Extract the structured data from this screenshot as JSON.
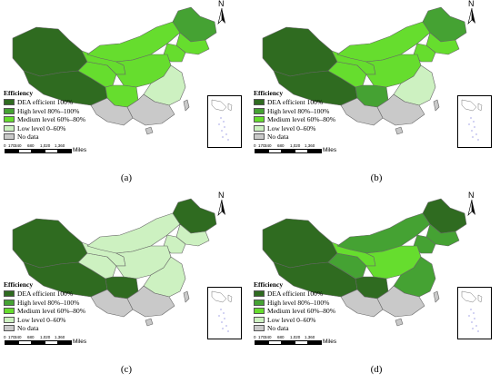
{
  "legend": {
    "title": "Efficiency",
    "items": [
      {
        "label": "DEA efficient 100%",
        "color": "#2f6b20"
      },
      {
        "label": "High level 80%–100%",
        "color": "#45a233"
      },
      {
        "label": "Medium level 60%–80%",
        "color": "#66dd2e"
      },
      {
        "label": "Low level 0–60%",
        "color": "#cdf1c1"
      },
      {
        "label": "No data",
        "color": "#c9c9c9"
      }
    ]
  },
  "scale_bar": {
    "ticks": [
      "0",
      "170",
      "340",
      "680",
      "1,020",
      "1,360"
    ],
    "unit": "Miles"
  },
  "north_arrow": {
    "letter": "N",
    "icon": "north-arrow-icon"
  },
  "panels": [
    {
      "caption": "(a)",
      "fills": {
        "xinjiang": "#2f6b20",
        "tibet": "#2f6b20",
        "inner_mongolia": "#66dd2e",
        "heilongjiang": "#45a233",
        "jilin": "#66dd2e",
        "liaoning": "#66dd2e",
        "qinghai": "#66dd2e",
        "gansu": "#66dd2e",
        "sichuan": "#66dd2e",
        "central_north": "#66dd2e",
        "east": "#cdf1c1",
        "south": "#c9c9c9",
        "southwest": "#c9c9c9"
      }
    },
    {
      "caption": "(b)",
      "fills": {
        "xinjiang": "#2f6b20",
        "tibet": "#2f6b20",
        "inner_mongolia": "#66dd2e",
        "heilongjiang": "#45a233",
        "jilin": "#66dd2e",
        "liaoning": "#66dd2e",
        "qinghai": "#66dd2e",
        "gansu": "#66dd2e",
        "sichuan": "#45a233",
        "central_north": "#66dd2e",
        "east": "#cdf1c1",
        "south": "#c9c9c9",
        "southwest": "#c9c9c9"
      }
    },
    {
      "caption": "(c)",
      "fills": {
        "xinjiang": "#2f6b20",
        "tibet": "#2f6b20",
        "inner_mongolia": "#cdf1c1",
        "heilongjiang": "#2f6b20",
        "jilin": "#cdf1c1",
        "liaoning": "#cdf1c1",
        "qinghai": "#cdf1c1",
        "gansu": "#cdf1c1",
        "sichuan": "#2f6b20",
        "central_north": "#cdf1c1",
        "east": "#cdf1c1",
        "south": "#c9c9c9",
        "southwest": "#c9c9c9"
      }
    },
    {
      "caption": "(d)",
      "fills": {
        "xinjiang": "#2f6b20",
        "tibet": "#2f6b20",
        "inner_mongolia": "#45a233",
        "heilongjiang": "#2f6b20",
        "jilin": "#45a233",
        "liaoning": "#45a233",
        "qinghai": "#45a233",
        "gansu": "#66dd2e",
        "sichuan": "#2f6b20",
        "central_north": "#66dd2e",
        "east": "#45a233",
        "south": "#c9c9c9",
        "southwest": "#c9c9c9"
      }
    }
  ]
}
